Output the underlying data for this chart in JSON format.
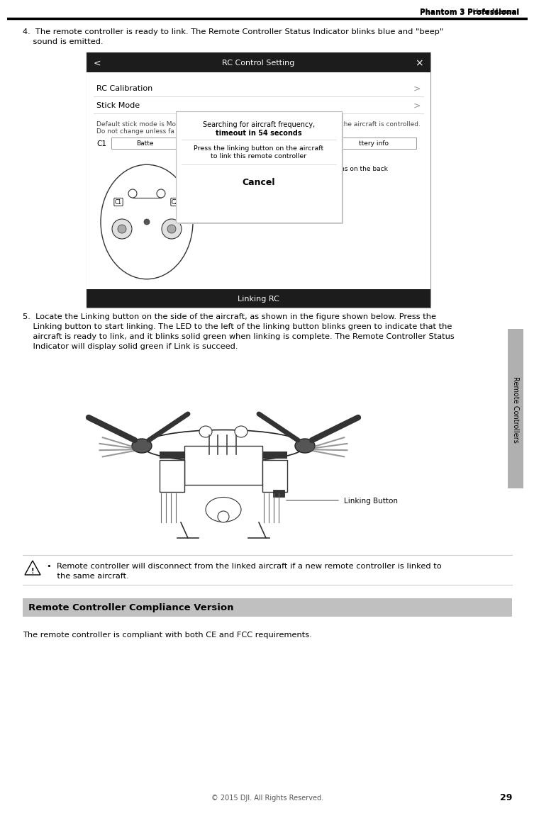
{
  "page_title_bold": "Phantom 3 Professional",
  "page_title_normal": " User Manual",
  "page_number": "29",
  "footer_text": "© 2015 DJI. All Rights Reserved.",
  "sidebar_text": "Remote Controllers",
  "step4_line1": "4.  The remote controller is ready to link. The Remote Controller Status Indicator blinks blue and \"beep\"",
  "step4_line2": "    sound is emitted.",
  "step5_line1": "5.  Locate the Linking button on the side of the aircraft, as shown in the figure shown below. Press the",
  "step5_line2": "    Linking button to start linking. The LED to the left of the linking button blinks green to indicate that the",
  "step5_line3": "    aircraft is ready to link, and it blinks solid green when linking is complete. The Remote Controller Status",
  "step5_line4": "    Indicator will display solid green if Link is succeed.",
  "warn_line1": "•  Remote controller will disconnect from the linked aircraft if a new remote controller is linked to",
  "warn_line2": "    the same aircraft.",
  "section_title": "Remote Controller Compliance Version",
  "section_body": "The remote controller is compliant with both CE and FCC requirements.",
  "ui_title": "RC Control Setting",
  "ui_rc_cal": "RC Calibration",
  "ui_stick": "Stick Mode",
  "ui_note1": "Default stick mode is Mo",
  "ui_note1r": "the aircraft is controlled.",
  "ui_note2": "Do not change unless fa",
  "ui_c1": "C1",
  "ui_bat1": "Batte",
  "ui_bat2": "ttery info",
  "ui_c2note": "You can customize the C1 and C2 buttons on the back\nof the RC.",
  "ui_linking": "Linking RC",
  "dlg_line1": "Searching for aircraft frequency,",
  "dlg_line2": "timeout in 54 seconds",
  "dlg_line3": "Press the linking button on the aircraft",
  "dlg_line4": "to link this remote controller",
  "dlg_cancel": "Cancel",
  "linking_label": "Linking Button",
  "bg": "#ffffff",
  "sidebar_bg": "#b0b0b0",
  "section_bg": "#c0c0c0",
  "ui_dark": "#1c1c1c",
  "ui_light": "#f2f2f2",
  "sep_color": "#cccccc",
  "text_dark": "#111111",
  "text_gray": "#555555"
}
